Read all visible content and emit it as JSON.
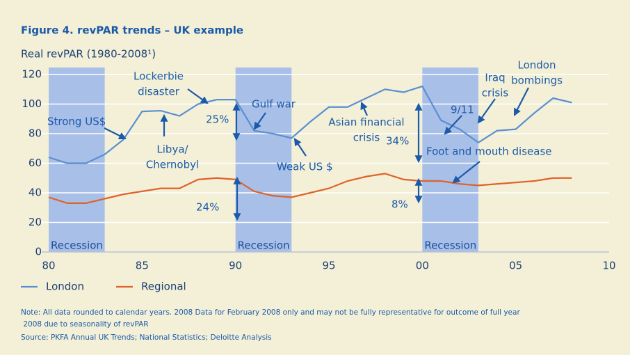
{
  "chart_data": {
    "type": "line",
    "title": "Figure 4. revPAR trends – UK example",
    "y_label": "Real revPAR (1980-2008¹)",
    "x": [
      1980,
      1981,
      1982,
      1983,
      1984,
      1985,
      1986,
      1987,
      1988,
      1989,
      1990,
      1991,
      1992,
      1993,
      1994,
      1995,
      1996,
      1997,
      1998,
      1999,
      2000,
      2001,
      2002,
      2003,
      2004,
      2005,
      2006,
      2007,
      2008
    ],
    "series": [
      {
        "name": "London",
        "color": "#5b8fd1",
        "values": [
          64,
          60,
          60,
          66,
          76,
          95,
          95.5,
          92,
          100,
          103,
          103,
          82,
          80,
          77,
          88,
          98,
          98,
          104,
          110,
          108,
          112,
          89,
          83,
          74,
          82,
          83,
          94,
          104,
          101
        ]
      },
      {
        "name": "Regional",
        "color": "#e0622a",
        "values": [
          37,
          33,
          33,
          36,
          39,
          41,
          43,
          43,
          49,
          50,
          49,
          41,
          38,
          37,
          40,
          43,
          48,
          51,
          53,
          49,
          48,
          48,
          46,
          45,
          46,
          47,
          48,
          50,
          50
        ]
      }
    ],
    "xlim": [
      1980,
      2010
    ],
    "xticks": [
      {
        "value": 1980,
        "label": "80"
      },
      {
        "value": 1985,
        "label": "85"
      },
      {
        "value": 1990,
        "label": "90"
      },
      {
        "value": 1995,
        "label": "95"
      },
      {
        "value": 2000,
        "label": "00"
      },
      {
        "value": 2005,
        "label": "05"
      },
      {
        "value": 2010,
        "label": "10"
      }
    ],
    "ylim": [
      0,
      120
    ],
    "yticks": [
      0,
      20,
      40,
      60,
      80,
      100,
      120
    ],
    "grid": true,
    "recessions": [
      {
        "start": 1980,
        "end": 1983,
        "label": "Recession"
      },
      {
        "start": 1990,
        "end": 1993,
        "label": "Recession"
      },
      {
        "start": 2000,
        "end": 2003,
        "label": "Recession"
      }
    ],
    "recession_color": "#a8bfe8",
    "annotations": [
      {
        "lines": [
          "Strong US$"
        ]
      },
      {
        "lines": [
          "Lockerbie",
          "disaster"
        ]
      },
      {
        "lines": [
          "Libya/",
          "Chernobyl"
        ]
      },
      {
        "lines": [
          "Gulf war"
        ]
      },
      {
        "lines": [
          "25%"
        ]
      },
      {
        "lines": [
          "24%"
        ]
      },
      {
        "lines": [
          "Weak US $"
        ]
      },
      {
        "lines": [
          "Asian financial",
          "crisis"
        ]
      },
      {
        "lines": [
          "34%"
        ]
      },
      {
        "lines": [
          "8%"
        ]
      },
      {
        "lines": [
          "9/11"
        ]
      },
      {
        "lines": [
          "Iraq",
          "crisis"
        ]
      },
      {
        "lines": [
          "London",
          "bombings"
        ]
      },
      {
        "lines": [
          "Foot and mouth disease"
        ]
      }
    ],
    "note": "Note: All data rounded to calendar years. 2008 Data for February 2008 only and may not be fully representative for outcome of full year 2008 due to seasonality of revPAR",
    "source": "Source:  PKFA Annual UK Trends; National Statistics; Deloitte Analysis"
  }
}
